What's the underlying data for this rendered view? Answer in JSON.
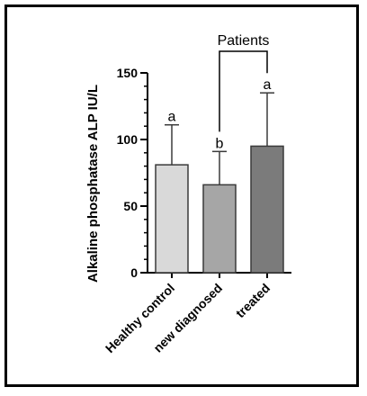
{
  "chart_data": {
    "type": "bar",
    "ylabel": "Alkaline phosphatase ALP IU/L",
    "ylim": [
      0,
      150
    ],
    "yticks": [
      0,
      50,
      100,
      150
    ],
    "categories": [
      "Healthy control",
      "new diagnosed",
      "treated"
    ],
    "values": [
      81,
      66,
      95
    ],
    "error_upper": [
      111,
      91,
      135
    ],
    "significance_letters": [
      "a",
      "b",
      "a"
    ],
    "bracket": {
      "label": "Patients",
      "spans": [
        "new diagnosed",
        "treated"
      ]
    },
    "colors": [
      "#d9d9d9",
      "#a6a6a6",
      "#7b7b7b"
    ],
    "edge_color": "#3a3a3a",
    "grid": false
  }
}
